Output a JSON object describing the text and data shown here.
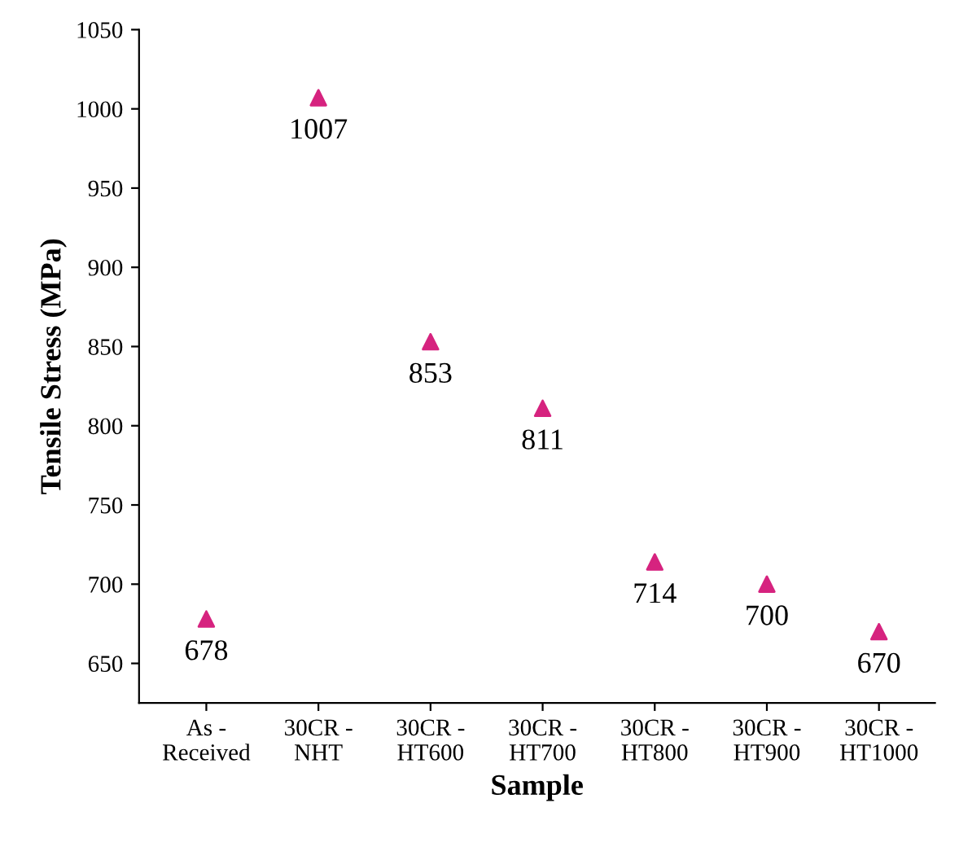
{
  "chart_data": {
    "type": "scatter",
    "xlabel": "Sample",
    "ylabel": "Tensile Stress (MPa)",
    "categories": [
      "As -\nReceived",
      "30CR -\nNHT",
      "30CR -\nHT600",
      "30CR -\nHT700",
      "30CR -\nHT800",
      "30CR -\nHT900",
      "30CR -\nHT1000"
    ],
    "values": [
      678,
      1007,
      853,
      811,
      714,
      700,
      670
    ],
    "color": "#d6237f",
    "marker": "triangle",
    "data_labels": true,
    "ylim": [
      625,
      1050
    ],
    "yticks": [
      650,
      700,
      750,
      800,
      850,
      900,
      950,
      1000,
      1050
    ]
  }
}
